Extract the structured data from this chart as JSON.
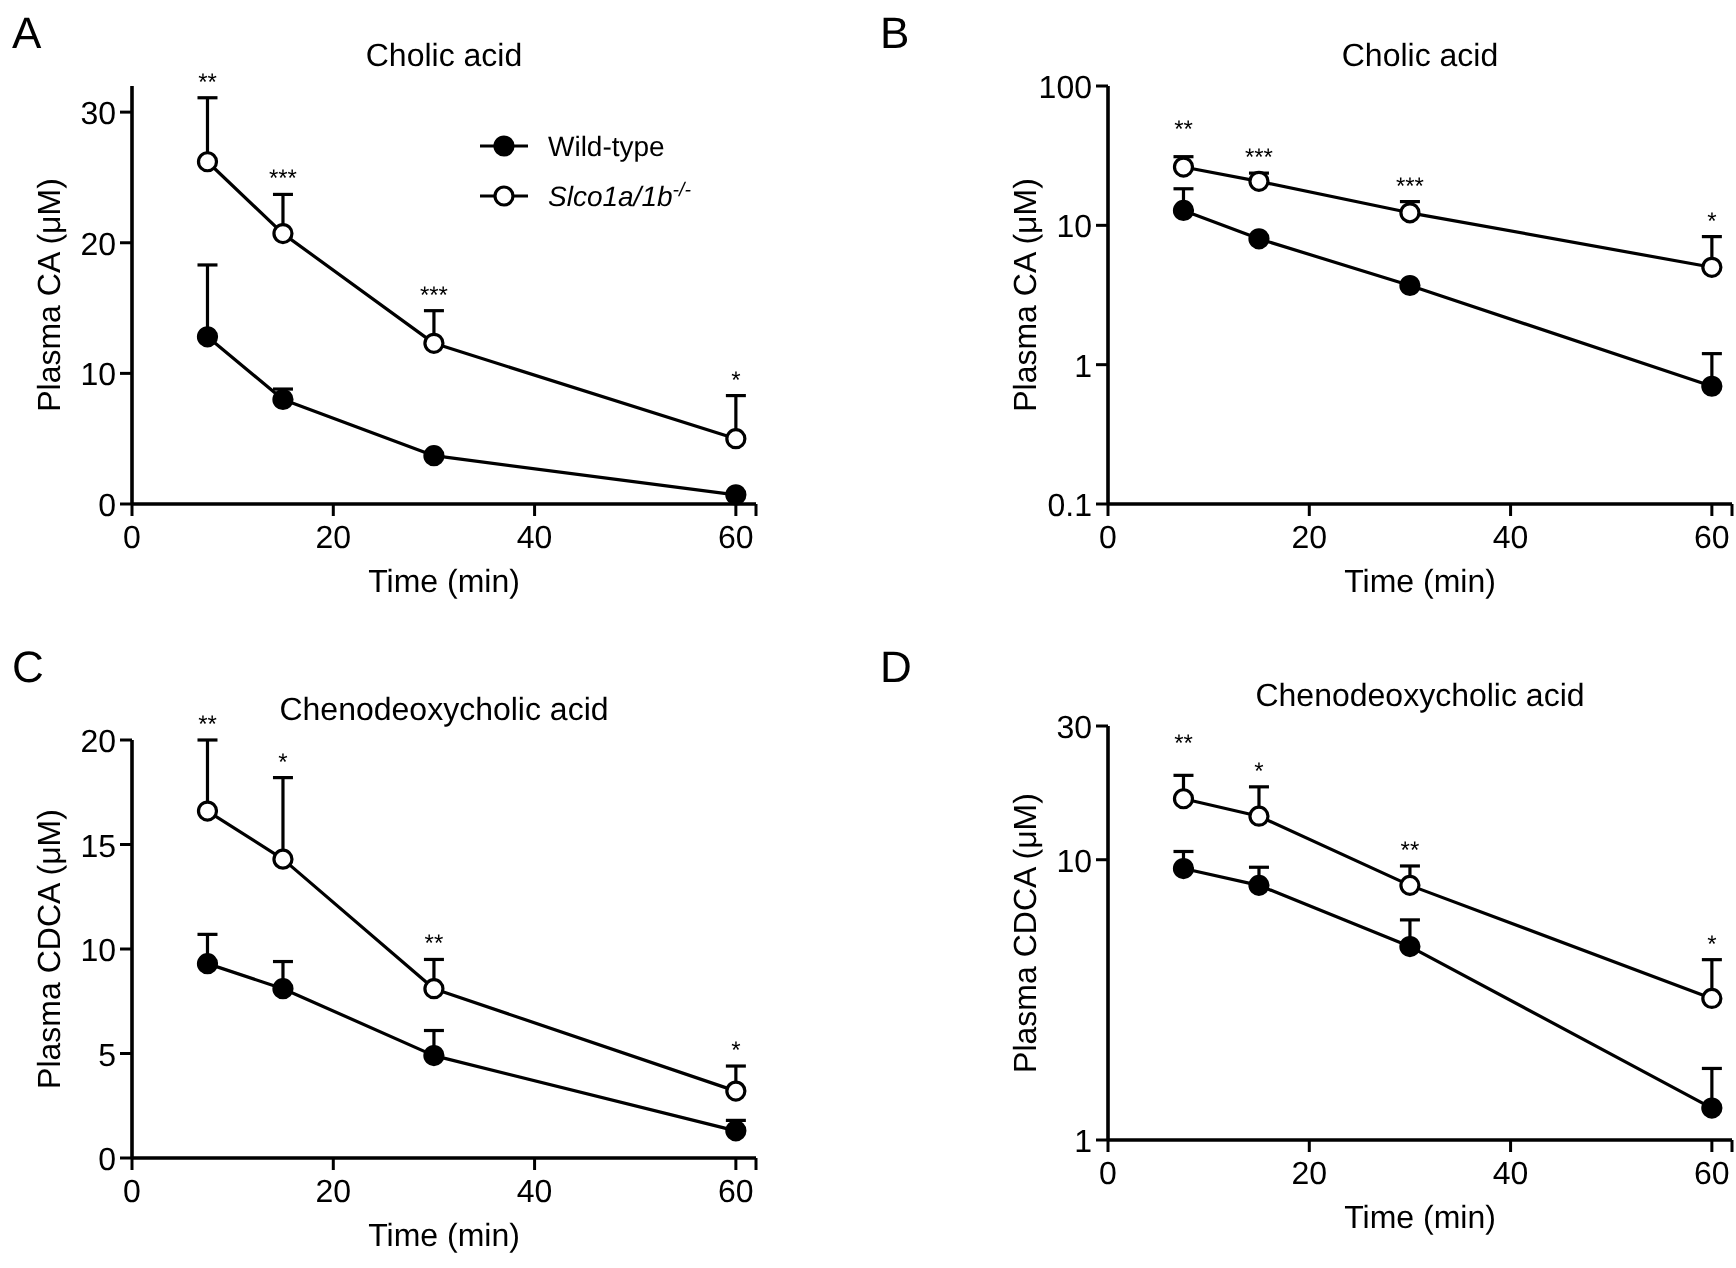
{
  "chart_data": [
    {
      "type": "line",
      "title": "Cholic acid",
      "xlabel": "Time (min)",
      "ylabel": "Plasma CA (μM)",
      "x": [
        7.5,
        15,
        30,
        60
      ],
      "xlim": [
        0,
        62
      ],
      "xticks": [
        0,
        20,
        40,
        60
      ],
      "ylim": [
        0,
        32
      ],
      "yticks": [
        0,
        10,
        20,
        30
      ],
      "marker": "circle",
      "legend": "top right",
      "series": [
        {
          "name": "Wild-type",
          "color": "#000000",
          "values": [
            12.8,
            8.0,
            3.7,
            0.7
          ],
          "errors": [
            [
              12.8,
              18.3
            ],
            [
              8.0,
              8.8
            ],
            null,
            null
          ]
        },
        {
          "name": "Slco1a/1b$^{-/-}$",
          "color": "#000000",
          "values": [
            26.2,
            20.7,
            12.3,
            5.0
          ],
          "errors": [
            [
              26.2,
              31.1
            ],
            [
              20.7,
              23.7
            ],
            [
              12.3,
              14.8
            ],
            [
              5.0,
              8.3
            ]
          ]
        }
      ],
      "annotations": [
        "A",
        {
          "text": "**",
          "x": 7.5,
          "y": 31.1
        },
        {
          "text": "***",
          "x": 15,
          "y": 23.7
        },
        {
          "text": "***",
          "x": 30,
          "y": 14.8
        },
        {
          "text": "*",
          "x": 60,
          "y": 8.3
        }
      ]
    },
    {
      "type": "line",
      "title": "Cholic acid",
      "xlabel": "Time (min)",
      "ylabel": "Plasma CA (μM)",
      "x": [
        7.5,
        15,
        30,
        60
      ],
      "xlim": [
        0,
        62
      ],
      "xticks": [
        0,
        20,
        40,
        60
      ],
      "ylim": [
        0.1,
        100
      ],
      "yticks": [
        0.1,
        1,
        10,
        100
      ],
      "log": "y",
      "marker": "circle",
      "series": [
        {
          "color": "#000000",
          "values": [
            12.8,
            8.0,
            3.7,
            0.7
          ],
          "errors": [
            [
              12.8,
              18.3
            ],
            null,
            null,
            [
              0.7,
              1.2
            ]
          ]
        },
        {
          "color": "#000000",
          "values": [
            26.2,
            20.7,
            12.3,
            5.0
          ],
          "errors": [
            [
              26.2,
              31.1
            ],
            [
              20.7,
              23.7
            ],
            [
              12.3,
              14.8
            ],
            [
              5.0,
              8.3
            ]
          ]
        }
      ],
      "annotations": [
        "B",
        {
          "text": "**",
          "x": 7.5,
          "y": 31.1
        },
        {
          "text": "***",
          "x": 15,
          "y": 23.7
        },
        {
          "text": "***",
          "x": 30,
          "y": 14.8
        },
        {
          "text": "*",
          "x": 60,
          "y": 8.3
        }
      ]
    },
    {
      "type": "line",
      "title": "Chenodeoxycholic acid",
      "xlabel": "Time (min)",
      "ylabel": "Plasma CDCA (μM)",
      "x": [
        7.5,
        15,
        30,
        60
      ],
      "xlim": [
        0,
        62
      ],
      "xticks": [
        0,
        20,
        40,
        60
      ],
      "ylim": [
        0,
        20
      ],
      "yticks": [
        0,
        5,
        10,
        15,
        20
      ],
      "marker": "circle",
      "series": [
        {
          "color": "#000000",
          "values": [
            9.3,
            8.1,
            4.9,
            1.3
          ],
          "errors": [
            [
              9.3,
              10.7
            ],
            [
              8.1,
              9.4
            ],
            [
              4.9,
              6.1
            ],
            [
              1.3,
              1.8
            ]
          ]
        },
        {
          "color": "#000000",
          "values": [
            16.6,
            14.3,
            8.1,
            3.2
          ],
          "errors": [
            [
              16.6,
              20
            ],
            [
              14.3,
              18.2
            ],
            [
              8.1,
              9.5
            ],
            [
              3.2,
              4.4
            ]
          ]
        }
      ],
      "annotations": [
        "C",
        {
          "text": "**",
          "x": 7.5,
          "y": 20
        },
        {
          "text": "*",
          "x": 15,
          "y": 18.2
        },
        {
          "text": "**",
          "x": 30,
          "y": 9.5
        },
        {
          "text": "*",
          "x": 60,
          "y": 4.4
        }
      ]
    },
    {
      "type": "line",
      "title": "Chenodeoxycholic acid",
      "xlabel": "Time (min)",
      "ylabel": "Plasma CDCA (μM)",
      "x": [
        7.5,
        15,
        30,
        60
      ],
      "xlim": [
        0,
        62
      ],
      "xticks": [
        0,
        20,
        40,
        60
      ],
      "ylim": [
        1,
        30
      ],
      "yticks": [
        1,
        10,
        30
      ],
      "log": "y",
      "marker": "circle",
      "series": [
        {
          "color": "#000000",
          "values": [
            9.3,
            8.1,
            4.9,
            1.3
          ],
          "errors": [
            [
              9.3,
              10.7
            ],
            [
              8.1,
              9.4
            ],
            [
              4.9,
              6.1
            ],
            [
              1.3,
              1.8
            ]
          ]
        },
        {
          "color": "#000000",
          "values": [
            16.5,
            14.3,
            8.1,
            3.2
          ],
          "errors": [
            [
              16.5,
              20
            ],
            [
              14.3,
              18.2
            ],
            [
              8.1,
              9.5
            ],
            [
              3.2,
              4.4
            ]
          ]
        }
      ],
      "annotations": [
        "D",
        {
          "text": "**",
          "x": 7.5,
          "y": 20
        },
        {
          "text": "*",
          "x": 15,
          "y": 18.2
        },
        {
          "text": "**",
          "x": 30,
          "y": 9.5
        },
        {
          "text": "*",
          "x": 60,
          "y": 4.4
        }
      ]
    }
  ]
}
